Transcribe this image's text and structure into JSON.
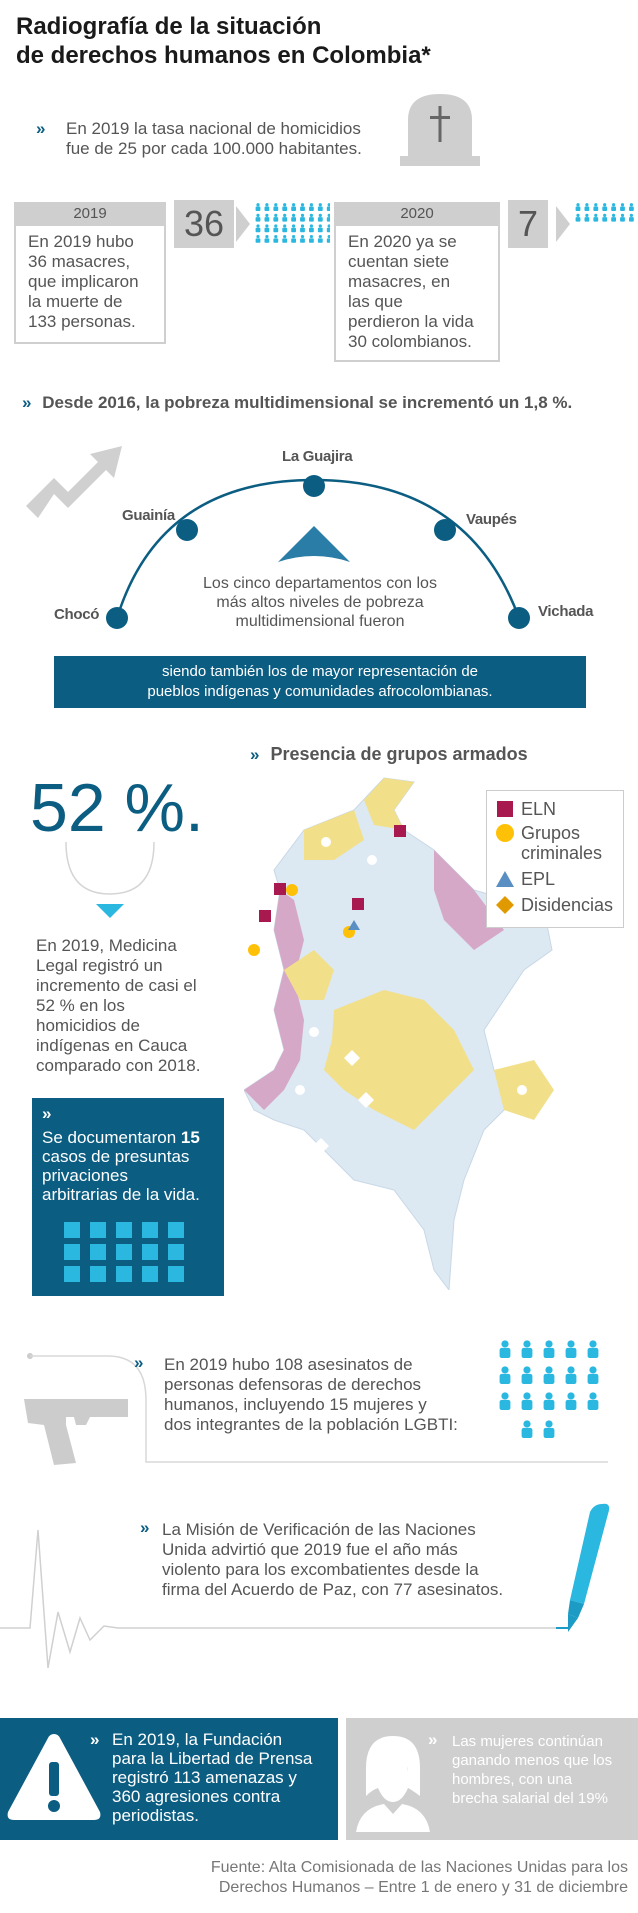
{
  "header": {
    "title_line1": "Radiografía de la situación",
    "title_line2": "de derechos humanos en Colombia*"
  },
  "homicides": {
    "marker": "»",
    "text_line1": "En 2019 la tasa nacional de homicidios",
    "text_line2": "fue de 25 por cada 100.000 habitantes.",
    "icon": "tombstone-icon"
  },
  "massacres": {
    "y2019": {
      "year": "2019",
      "count": "36",
      "lines": [
        "En 2019 hubo",
        "36 masacres,",
        "que implicaron",
        "la muerte de",
        "133 personas."
      ]
    },
    "y2020": {
      "year": "2020",
      "count": "7",
      "lines": [
        "En 2020 ya se",
        "cuentan siete",
        "masacres, en",
        "las que",
        "perdieron la vida",
        "30 colombianos."
      ]
    },
    "people_icon": "people-group-icon"
  },
  "poverty": {
    "marker": "»",
    "headline": "Desde 2016, la pobreza multidimensional se incrementó un 1,8 %.",
    "departments": [
      "Chocó",
      "Guainía",
      "La Guajira",
      "Vaupés",
      "Vichada"
    ],
    "center_lines": [
      "Los cinco departamentos con los",
      "más altos niveles de pobreza",
      "multidimensional fueron"
    ],
    "band_lines": [
      "siendo también los de mayor representación de",
      "pueblos indígenas y comunidades afrocolombianas."
    ],
    "icon": "trend-up-arrow-icon"
  },
  "armed_groups": {
    "marker": "»",
    "title": "Presencia de grupos armados",
    "legend": [
      {
        "label_lines": [
          "ELN"
        ],
        "color": "#a8194f",
        "shape": "square"
      },
      {
        "label_lines": [
          "Grupos",
          "criminales"
        ],
        "color": "#ffc107",
        "shape": "circle"
      },
      {
        "label_lines": [
          "EPL"
        ],
        "color": "#5a8fc4",
        "shape": "triangle"
      },
      {
        "label_lines": [
          "Disidencias"
        ],
        "color": "#e09a00",
        "shape": "diamond"
      }
    ]
  },
  "indigenous": {
    "percent": "52 %.",
    "lines": [
      "En 2019, Medicina",
      "Legal registró un",
      "incremento de casi el",
      "52 % en los",
      "homicidios de",
      "indígenas en Cauca",
      "comparado con 2018."
    ]
  },
  "arbitrary": {
    "marker": "»",
    "line1_pre": "Se documentaron ",
    "line1_num": "15",
    "lines": [
      "casos de presuntas",
      "privaciones",
      "arbitrarias de la vida."
    ]
  },
  "defenders": {
    "marker": "»",
    "lines": [
      "En 2019 hubo 108 asesinatos de",
      "personas defensoras de derechos",
      "humanos, incluyendo 15 mujeres y",
      "dos integrantes de la población LGBTI:"
    ],
    "icon": "handgun-icon",
    "people_icon": "people-group-icon"
  },
  "ex_combatants": {
    "marker": "»",
    "lines": [
      "La Misión de Verificación de las Naciones",
      "Unida advirtió que 2019 fue el año más",
      "violento para los excombatientes desde la",
      "firma del Acuerdo de Paz, con 77 asesinatos."
    ],
    "icon": "fountain-pen-icon"
  },
  "journalists": {
    "marker": "»",
    "lines": [
      "En 2019, la Fundación",
      "para la Libertad de Prensa",
      "registró 113 amenazas y",
      "360 agresiones contra",
      "periodistas."
    ],
    "icon": "warning-triangle-icon"
  },
  "women": {
    "marker": "»",
    "lines": [
      "Las mujeres continúan",
      "ganando menos que los",
      "hombres, con una",
      "brecha salarial del 19%"
    ],
    "icon": "woman-avatar-icon"
  },
  "source": {
    "line1": "Fuente: Alta Comisionada de las Naciones Unidas para los",
    "line2": "Derechos Humanos – Entre 1 de enero y 31 de diciembre"
  }
}
